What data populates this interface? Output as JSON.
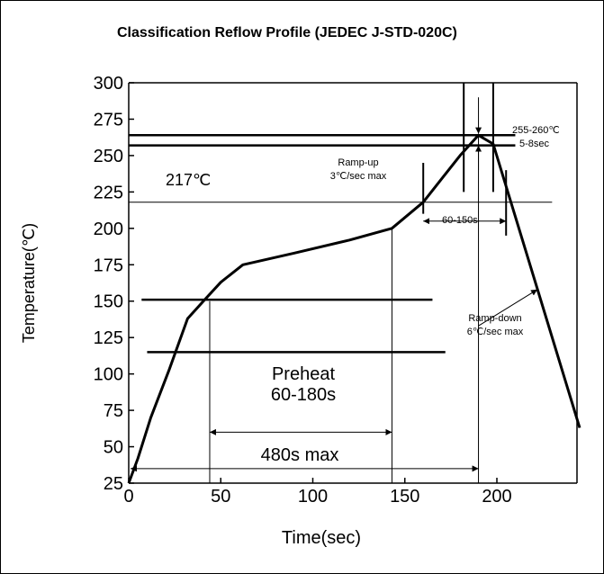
{
  "chart_data": {
    "type": "line",
    "title": "Classification Reflow Profile (JEDEC J-STD-020C)",
    "xlabel": "Time(sec)",
    "ylabel": "Temperature(℃)",
    "xlim": [
      0,
      245
    ],
    "ylim": [
      25,
      300
    ],
    "x_ticks": [
      0,
      50,
      100,
      150,
      200
    ],
    "y_ticks": [
      25,
      50,
      75,
      100,
      125,
      150,
      175,
      200,
      225,
      250,
      275,
      300
    ],
    "grid": false,
    "legend": "none",
    "series": [
      {
        "x": [
          0,
          5,
          12,
          22,
          32,
          42,
          50,
          62,
          90,
          120,
          143,
          160,
          170,
          180,
          190,
          198,
          245
        ],
        "y": [
          25,
          42,
          70,
          103,
          138,
          152,
          163,
          175,
          183,
          192,
          200,
          218,
          234,
          250,
          264,
          258,
          63
        ]
      }
    ],
    "reference_lines": {
      "horizontal": [
        {
          "y": 264,
          "x_from": 0,
          "x_to": 210
        },
        {
          "y": 257,
          "x_from": 0,
          "x_to": 210
        },
        {
          "y": 218,
          "x_from": 0,
          "x_to": 230
        },
        {
          "y": 151,
          "x_from": 7,
          "x_to": 165
        },
        {
          "y": 115,
          "x_from": 10,
          "x_to": 172
        }
      ],
      "vertical": [
        {
          "x": 44,
          "y_from": 25,
          "y_to": 150
        },
        {
          "x": 143,
          "y_from": 25,
          "y_to": 200
        },
        {
          "x": 190,
          "y_from": 25,
          "y_to": 264
        }
      ]
    },
    "annotations": {
      "label_217": "217℃",
      "label_peak_temp": "255-260℃",
      "label_peak_time": "5-8sec",
      "label_rampup_1": "Ramp-up",
      "label_rampup_2": "3℃/sec max",
      "label_liquidus_time": "60-150s",
      "label_rampdown_1": "Ramp-down",
      "label_rampdown_2": "6℃/sec max",
      "label_preheat_1": "Preheat",
      "label_preheat_2": "60-180s",
      "label_total": "480s max"
    }
  }
}
